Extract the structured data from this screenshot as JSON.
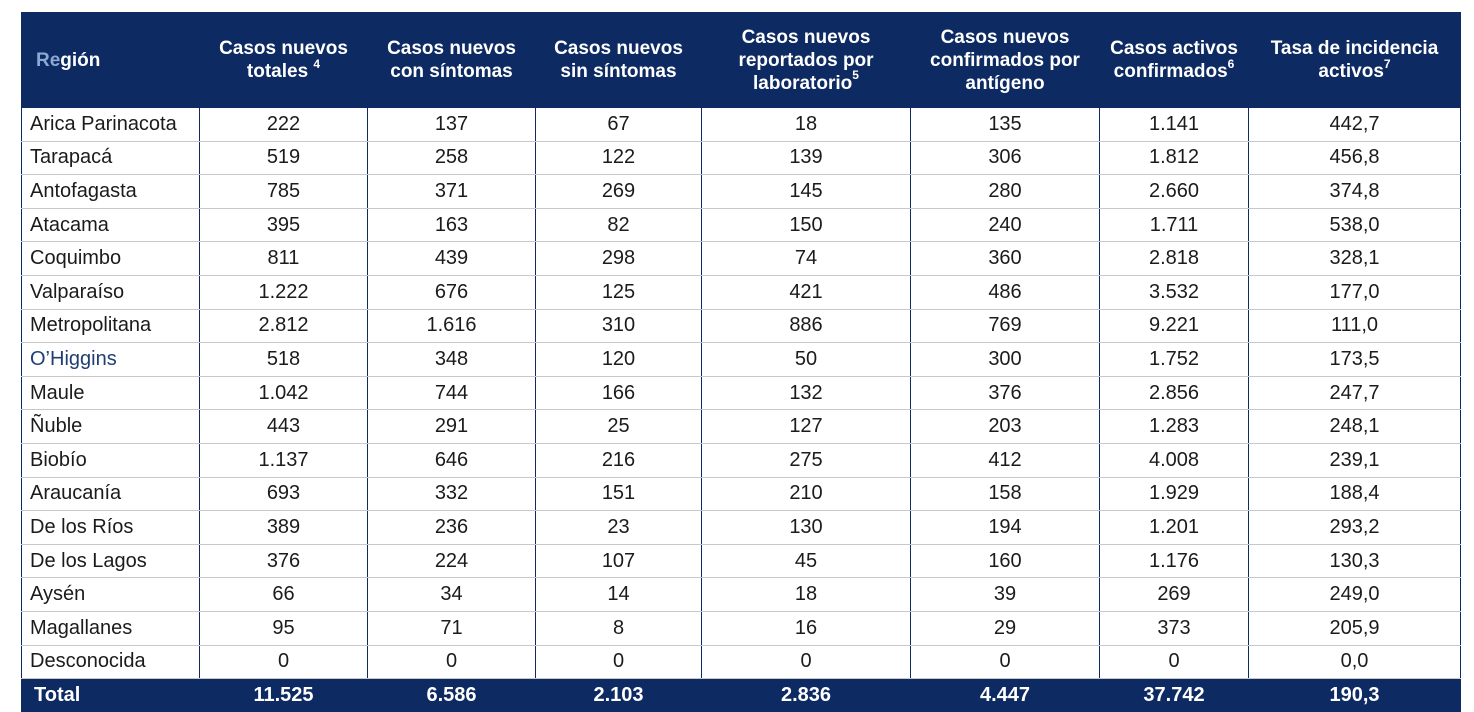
{
  "headers": {
    "region_a": "Re",
    "region_b": "gión",
    "col1": "Casos nuevos totales",
    "col1_sup": "4",
    "col2": "Casos nuevos con síntomas",
    "col3": "Casos nuevos sin síntomas",
    "col4": "Casos nuevos reportados por laboratorio",
    "col4_sup": "5",
    "col5": "Casos nuevos confirmados por antígeno",
    "col6": "Casos activos confirmados",
    "col6_sup": "6",
    "col7": "Tasa de incidencia activos",
    "col7_sup": "7"
  },
  "rows": [
    [
      "Arica Parinacota",
      "222",
      "137",
      "67",
      "18",
      "135",
      "1.141",
      "442,7"
    ],
    [
      "Tarapacá",
      "519",
      "258",
      "122",
      "139",
      "306",
      "1.812",
      "456,8"
    ],
    [
      "Antofagasta",
      "785",
      "371",
      "269",
      "145",
      "280",
      "2.660",
      "374,8"
    ],
    [
      "Atacama",
      "395",
      "163",
      "82",
      "150",
      "240",
      "1.711",
      "538,0"
    ],
    [
      "Coquimbo",
      "811",
      "439",
      "298",
      "74",
      "360",
      "2.818",
      "328,1"
    ],
    [
      "Valparaíso",
      "1.222",
      "676",
      "125",
      "421",
      "486",
      "3.532",
      "177,0"
    ],
    [
      "Metropolitana",
      "2.812",
      "1.616",
      "310",
      "886",
      "769",
      "9.221",
      "111,0"
    ],
    [
      "O’Higgins",
      "518",
      "348",
      "120",
      "50",
      "300",
      "1.752",
      "173,5"
    ],
    [
      "Maule",
      "1.042",
      "744",
      "166",
      "132",
      "376",
      "2.856",
      "247,7"
    ],
    [
      "Ñuble",
      "443",
      "291",
      "25",
      "127",
      "203",
      "1.283",
      "248,1"
    ],
    [
      "Biobío",
      "1.137",
      "646",
      "216",
      "275",
      "412",
      "4.008",
      "239,1"
    ],
    [
      "Araucanía",
      "693",
      "332",
      "151",
      "210",
      "158",
      "1.929",
      "188,4"
    ],
    [
      "De los Ríos",
      "389",
      "236",
      "23",
      "130",
      "194",
      "1.201",
      "293,2"
    ],
    [
      "De los Lagos",
      "376",
      "224",
      "107",
      "45",
      "160",
      "1.176",
      "130,3"
    ],
    [
      "Aysén",
      "66",
      "34",
      "14",
      "18",
      "39",
      "269",
      "249,0"
    ],
    [
      "Magallanes",
      "95",
      "71",
      "8",
      "16",
      "29",
      "373",
      "205,9"
    ],
    [
      "Desconocida",
      "0",
      "0",
      "0",
      "0",
      "0",
      "0",
      "0,0"
    ]
  ],
  "total": [
    "Total",
    "11.525",
    "6.586",
    "2.103",
    "2.836",
    "4.447",
    "37.742",
    "190,3"
  ],
  "colors": {
    "header_bg": "#0d2a62",
    "header_text": "#ffffff",
    "region_accent": "#8aa9d4"
  }
}
